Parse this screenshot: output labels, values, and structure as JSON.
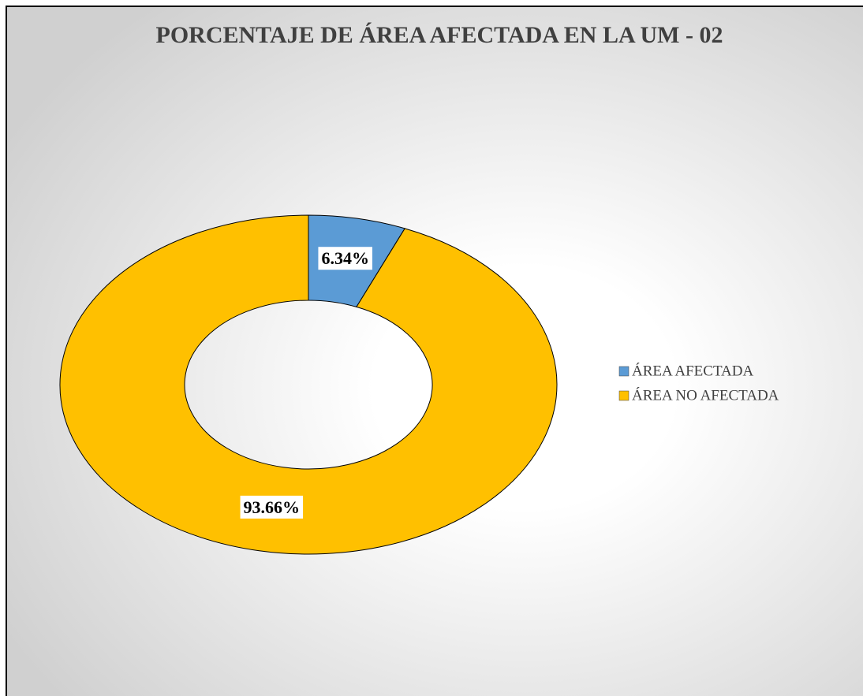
{
  "chart_data": {
    "type": "donut",
    "title": "PORCENTAJE DE ÁREA AFECTADA EN LA UM - 02",
    "categories": [
      "ÁREA AFECTADA",
      "ÁREA NO AFECTADA"
    ],
    "values": [
      6.34,
      93.66
    ],
    "value_labels": [
      "6.34%",
      "93.66%"
    ],
    "colors": [
      "#5b9bd5",
      "#ffc000"
    ],
    "legend": "right"
  }
}
